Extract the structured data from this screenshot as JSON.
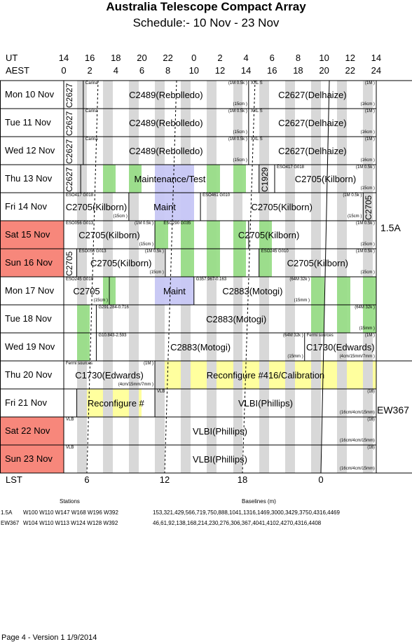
{
  "header": {
    "title": "Australia Telescope Compact Array",
    "subtitle": "Schedule:- 10 Nov - 23 Nov",
    "ut_label": "UT",
    "aest_label": "AEST",
    "lst_label": "LST",
    "ut_ticks": [
      "14",
      "16",
      "18",
      "20",
      "22",
      "0",
      "2",
      "4",
      "6",
      "8",
      "10",
      "12",
      "14"
    ],
    "aest_ticks": [
      "0",
      "2",
      "4",
      "6",
      "8",
      "10",
      "12",
      "14",
      "16",
      "18",
      "20",
      "22",
      "24"
    ],
    "lst_ticks": [
      "6",
      "12",
      "18",
      "0"
    ]
  },
  "colors": {
    "weekend": "#f7877b",
    "maintenance": "#c8c8f5",
    "reconfig": "#ffff99",
    "green": "#99dd88",
    "grey": "#d8d8d8"
  },
  "days": [
    {
      "label": "Mon  10 Nov",
      "weekend": false
    },
    {
      "label": "Tue   11 Nov",
      "weekend": false
    },
    {
      "label": "Wed  12 Nov",
      "weekend": false
    },
    {
      "label": "Thu   13 Nov",
      "weekend": false
    },
    {
      "label": "Fri    14 Nov",
      "weekend": false
    },
    {
      "label": "Sat   15 Nov",
      "weekend": true
    },
    {
      "label": "Sun  16 Nov",
      "weekend": true
    },
    {
      "label": "Mon  17 Nov",
      "weekend": false
    },
    {
      "label": "Tue   18 Nov",
      "weekend": false
    },
    {
      "label": "Wed  19 Nov",
      "weekend": false
    },
    {
      "label": "Thu   20 Nov",
      "weekend": false
    },
    {
      "label": "Fri    21 Nov",
      "weekend": false
    },
    {
      "label": "Sat   22 Nov",
      "weekend": true
    },
    {
      "label": "Sun  23 Nov",
      "weekend": true
    }
  ],
  "configs": [
    {
      "label": "1.5A"
    },
    {
      "label": "EW367"
    }
  ],
  "rows": [
    {
      "blocks": [
        {
          "name": "C2627",
          "vertical": true
        },
        {
          "name": "C2489(Rebolledo)",
          "tl": "Carina",
          "tr": "(1M 0.5k )",
          "br": "(15cm )"
        },
        {
          "name": "C2627(Delhaize)",
          "tl": "XXL S",
          "tr": "(1M )",
          "br": "(16cm )"
        }
      ]
    },
    {
      "blocks": [
        {
          "name": "C2627",
          "vertical": true
        },
        {
          "name": "C2489(Rebolledo)",
          "tl": "Carina",
          "tr": "(1M 0.5k )",
          "br": "(15cm )"
        },
        {
          "name": "C2627(Delhaize)",
          "tl": "XXL S",
          "tr": "(1M )",
          "br": "(16cm )"
        }
      ]
    },
    {
      "blocks": [
        {
          "name": "C2627",
          "vertical": true
        },
        {
          "name": "C2489(Rebolledo)",
          "tl": "Carina",
          "tr": "(1M 0.5k )",
          "br": "(15cm )"
        },
        {
          "name": "C2627(Delhaize)",
          "tl": "XXL S",
          "tr": "(1M )",
          "br": "(16cm )"
        }
      ]
    },
    {
      "blocks": [
        {
          "name": "C2627",
          "vertical": true
        },
        {
          "name": "Maintenance/Test"
        },
        {
          "name": "C1929",
          "vertical": true
        },
        {
          "name": "C2705(Kilborn)",
          "tl": "ESO417 G018",
          "tr": "(1M 0.5k )",
          "br": "(15cm )"
        }
      ]
    },
    {
      "blocks": [
        {
          "name": "C2705(Kilborn)",
          "tl": "ESO417 G018",
          "br": "(15cm )"
        },
        {
          "name": "Maint"
        },
        {
          "name": "C2705(Kilborn)",
          "tl": "ESO461 G010",
          "tr": "(1M 0.5k )",
          "br": "(15cm )"
        },
        {
          "name": "C2705",
          "vertical": true
        }
      ]
    },
    {
      "blocks": [
        {
          "name": "C2705(Kilborn)",
          "tl": "ESO056 G013",
          "tr": "(1M 0.5k )",
          "br": "(15cm )"
        },
        {
          "name": "C2705(Kilborn)",
          "tl": "ESO290 G035",
          "tr": "(1M 0.5k )",
          "br": "(15cm )"
        }
      ]
    },
    {
      "blocks": [
        {
          "name": "C2705",
          "vertical": true
        },
        {
          "name": "C2705(Kilborn)",
          "tl": "ESO056 G013",
          "tr": "(1M 0.5k )",
          "br": "(15cm )"
        },
        {
          "name": "C2705(Kilborn)",
          "tl": "ESO245 G010",
          "tr": "(1M 0.5k )",
          "br": "(15cm )"
        }
      ]
    },
    {
      "blocks": [
        {
          "name": "C2705",
          "tl": "ESO245 G010",
          "br": "(15cm )"
        },
        {
          "name": "Maint"
        },
        {
          "name": "C2883(Motogi)",
          "tl": "G357.967-0.163",
          "tr": "(64M 32k )",
          "br": "(15mm )"
        }
      ]
    },
    {
      "blocks": [
        {
          "name": "C2883(Motogi)",
          "tl": "G291.284-0.716",
          "tr": "(64M 32k )",
          "br": "(15mm )"
        }
      ]
    },
    {
      "blocks": [
        {
          "name": "C2883(Motogi)",
          "tl": "G10.843-2.593",
          "tr": "(64M 32k )",
          "br": "(15mm )"
        },
        {
          "name": "C1730(Edwards)",
          "tl": "Fermi sources",
          "tr": "(1M )",
          "br": "(4cm/15mm/7mm )"
        }
      ]
    },
    {
      "blocks": [
        {
          "name": "C1730(Edwards)",
          "tl": "Fermi sources",
          "tr": "(1M )",
          "br": "(4cm/15mm/7mm )"
        },
        {
          "name": "Reconfigure #416/Calibration"
        }
      ]
    },
    {
      "blocks": [
        {
          "name": "Reconfigure #"
        },
        {
          "name": "VLBI(Phillips)",
          "tl": "VLB",
          "tr": "(16)",
          "br": "(16cm/4cm/15mm)"
        }
      ]
    },
    {
      "blocks": [
        {
          "name": "VLBI(Phillips)",
          "tl": "VLB",
          "tr": "(16)",
          "br": "(16cm/4cm/15mm)"
        }
      ]
    },
    {
      "blocks": [
        {
          "name": "VLBI(Phillips)",
          "tl": "VLB",
          "tr": "(16)",
          "br": "(16cm/4cm/15mm)"
        }
      ]
    }
  ],
  "footer": {
    "stations_label": "Stations",
    "baselines_label": "Baselines (m)",
    "config_rows": [
      {
        "name": "1.5A",
        "stations": "W100 W110 W147 W168 W196 W392",
        "baselines": "153,321,429,566,719,750,888,1041,1316,1469,3000,3429,3750,4316,4469"
      },
      {
        "name": "EW367",
        "stations": "W104 W110 W113 W124 W128 W392",
        "baselines": "46,61,92,138,168,214,230,276,306,367,4041,4102,4270,4316,4408"
      }
    ],
    "version": "Page 4 - Version 1  1/9/2014"
  }
}
